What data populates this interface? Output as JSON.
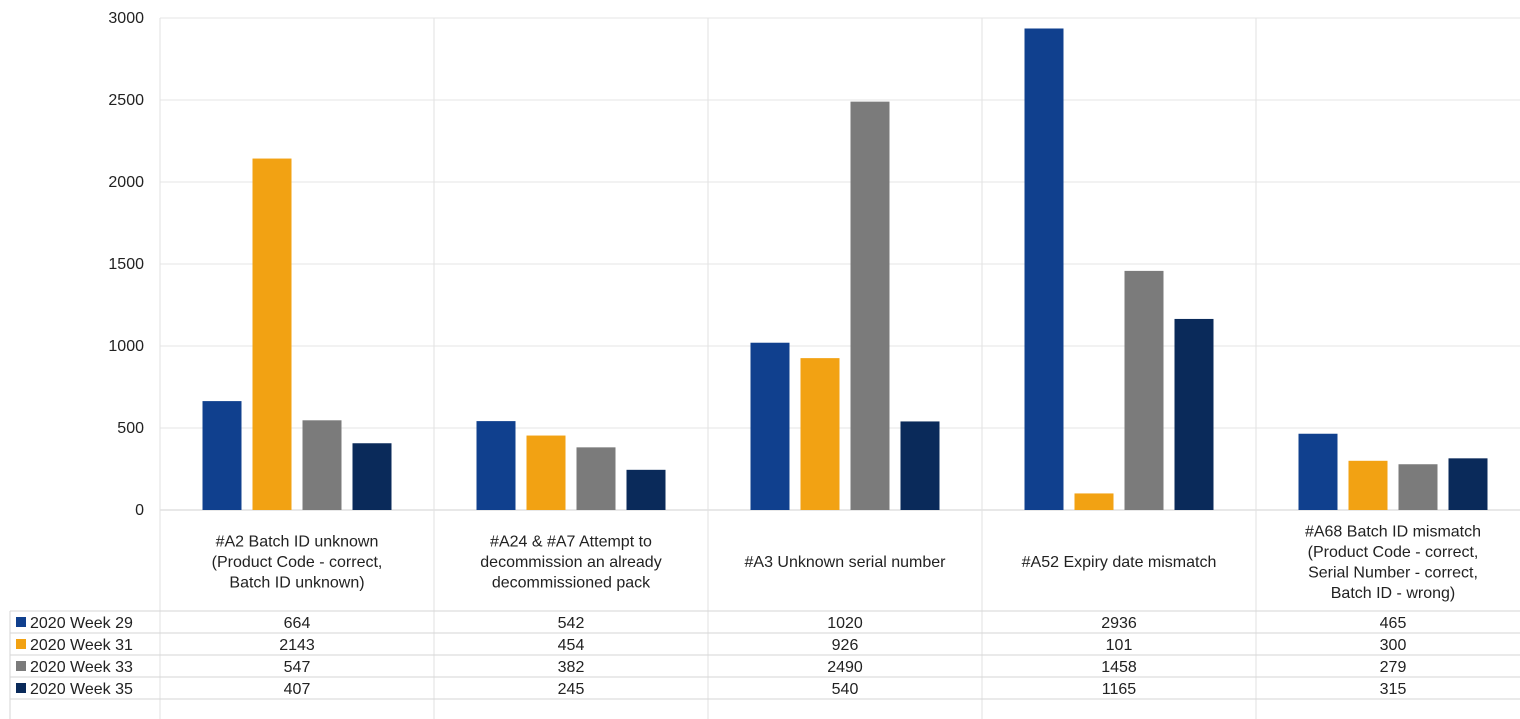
{
  "chart_data": {
    "type": "bar",
    "title": "",
    "xlabel": "",
    "ylabel": "",
    "ylim": [
      0,
      3000
    ],
    "yticks": [
      0,
      500,
      1000,
      1500,
      2000,
      2500,
      3000
    ],
    "grid": true,
    "legend_placement": "data-table-left",
    "categories": [
      [
        "#A2 Batch ID unknown",
        "(Product Code - correct,",
        "Batch ID unknown)"
      ],
      [
        "#A24 & #A7 Attempt to",
        "decommission an already",
        "decommissioned pack"
      ],
      [
        "#A3 Unknown serial number"
      ],
      [
        "#A52 Expiry date mismatch"
      ],
      [
        "#A68 Batch ID mismatch",
        "(Product Code - correct,",
        "Serial Number - correct,",
        "Batch ID - wrong)"
      ]
    ],
    "series": [
      {
        "name": "2020 Week 29",
        "color": "#10408e",
        "values": [
          664,
          542,
          1020,
          2936,
          465
        ]
      },
      {
        "name": "2020 Week 31",
        "color": "#f2a213",
        "values": [
          2143,
          454,
          926,
          101,
          300
        ]
      },
      {
        "name": "2020 Week 33",
        "color": "#7b7b7b",
        "values": [
          547,
          382,
          2490,
          1458,
          279
        ]
      },
      {
        "name": "2020 Week 35",
        "color": "#0a2a5a",
        "values": [
          407,
          245,
          540,
          1165,
          315
        ]
      }
    ]
  }
}
